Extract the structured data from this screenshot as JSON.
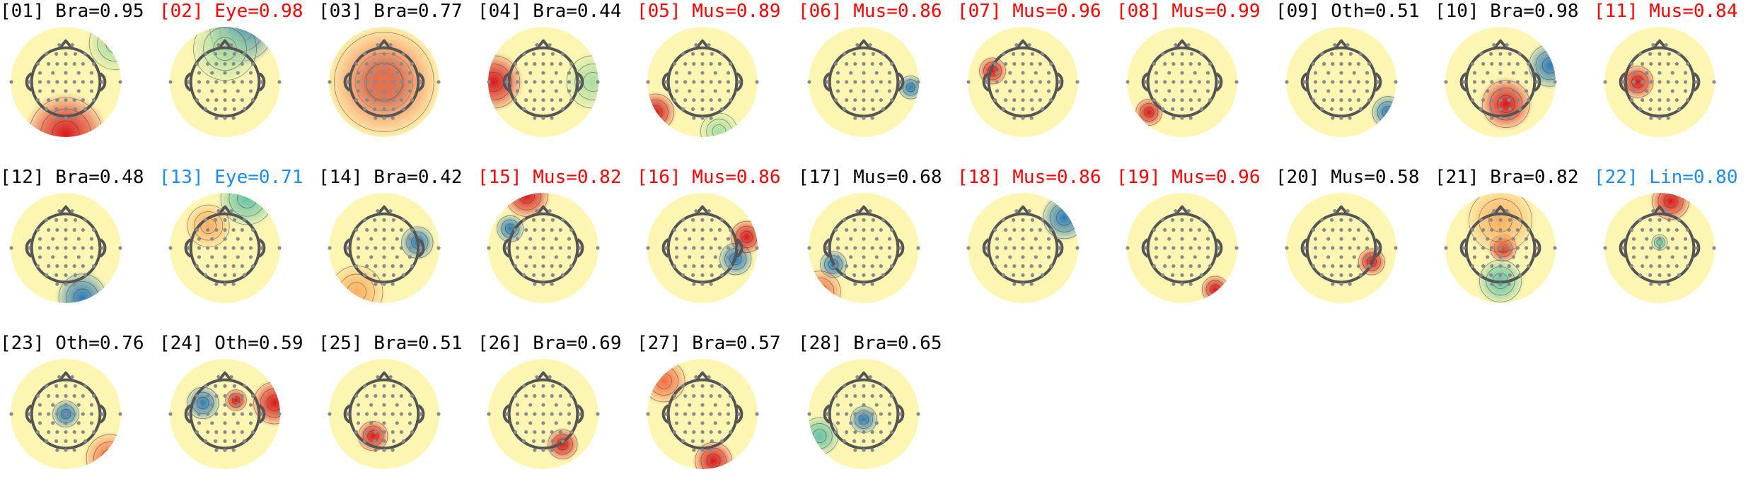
{
  "colors": {
    "Bra": "#000000",
    "Mus": "#ff0000",
    "Eye": "#ff0000",
    "Oth": "#000000",
    "Lin": "#1a8cff",
    "Eye13": "#1a8cff"
  },
  "components": [
    {
      "label": "[01] Bra=0.95",
      "color": "#000000"
    },
    {
      "label": "[02] Eye=0.98",
      "color": "#ff0000"
    },
    {
      "label": "[03] Bra=0.77",
      "color": "#000000"
    },
    {
      "label": "[04] Bra=0.44",
      "color": "#000000"
    },
    {
      "label": "[05] Mus=0.89",
      "color": "#ff0000"
    },
    {
      "label": "[06] Mus=0.86",
      "color": "#ff0000"
    },
    {
      "label": "[07] Mus=0.96",
      "color": "#ff0000"
    },
    {
      "label": "[08] Mus=0.99",
      "color": "#ff0000"
    },
    {
      "label": "[09] Oth=0.51",
      "color": "#000000"
    },
    {
      "label": "[10] Bra=0.98",
      "color": "#000000"
    },
    {
      "label": "[11] Mus=0.84",
      "color": "#ff0000"
    },
    {
      "label": "[12] Bra=0.48",
      "color": "#000000"
    },
    {
      "label": "[13] Eye=0.71",
      "color": "#1a8cff"
    },
    {
      "label": "[14] Bra=0.42",
      "color": "#000000"
    },
    {
      "label": "[15] Mus=0.82",
      "color": "#ff0000"
    },
    {
      "label": "[16] Mus=0.86",
      "color": "#ff0000"
    },
    {
      "label": "[17] Mus=0.68",
      "color": "#000000"
    },
    {
      "label": "[18] Mus=0.86",
      "color": "#ff0000"
    },
    {
      "label": "[19] Mus=0.96",
      "color": "#ff0000"
    },
    {
      "label": "[20] Mus=0.58",
      "color": "#000000"
    },
    {
      "label": "[21] Bra=0.82",
      "color": "#000000"
    },
    {
      "label": "[22] Lin=0.80",
      "color": "#1a8cff"
    },
    {
      "label": "[23] Oth=0.76",
      "color": "#000000"
    },
    {
      "label": "[24] Oth=0.59",
      "color": "#000000"
    },
    {
      "label": "[25] Bra=0.51",
      "color": "#000000"
    },
    {
      "label": "[26] Bra=0.69",
      "color": "#000000"
    },
    {
      "label": "[27] Bra=0.57",
      "color": "#000000"
    },
    {
      "label": "[28] Bra=0.65",
      "color": "#000000"
    }
  ]
}
